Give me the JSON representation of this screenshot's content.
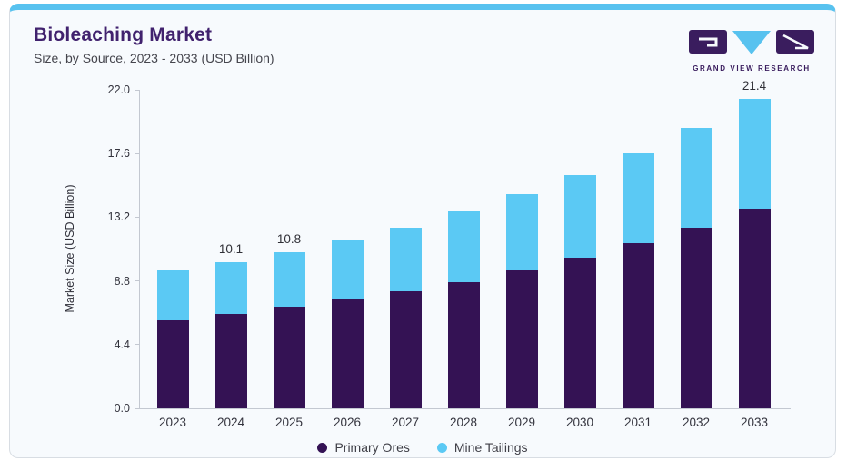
{
  "header": {
    "title": "Bioleaching Market",
    "subtitle": "Size, by Source, 2023 - 2033 (USD Billion)"
  },
  "logo": {
    "caption": "GRAND VIEW RESEARCH",
    "purple": "#3a1d5e",
    "blue": "#58c2ef"
  },
  "colors": {
    "card_background": "#f7fafd",
    "top_border": "#58c2ef",
    "axis_line": "#c3c8d1",
    "primary_ores": "#341254",
    "mine_tailings": "#5bc9f4"
  },
  "chart_data": {
    "type": "bar",
    "stacked": true,
    "title": "Bioleaching Market",
    "subtitle": "Size, by Source, 2023 - 2033 (USD Billion)",
    "xlabel": "",
    "ylabel": "Market Size (USD Billion)",
    "ylim": [
      0,
      22
    ],
    "yticks": [
      0.0,
      4.4,
      8.8,
      13.2,
      17.6,
      22.0
    ],
    "ytick_labels": [
      "0.0",
      "4.4",
      "8.8",
      "13.2",
      "17.6",
      "22.0"
    ],
    "grid": false,
    "legend_position": "bottom",
    "categories": [
      "2023",
      "2024",
      "2025",
      "2026",
      "2027",
      "2028",
      "2029",
      "2030",
      "2031",
      "2032",
      "2033"
    ],
    "series": [
      {
        "name": "Primary Ores",
        "color": "#341254",
        "values": [
          6.1,
          6.5,
          7.0,
          7.5,
          8.1,
          8.7,
          9.5,
          10.4,
          11.4,
          12.5,
          13.8
        ]
      },
      {
        "name": "Mine Tailings",
        "color": "#5bc9f4",
        "values": [
          3.4,
          3.6,
          3.8,
          4.1,
          4.4,
          4.9,
          5.3,
          5.7,
          6.2,
          6.9,
          7.6
        ]
      }
    ],
    "totals": [
      9.5,
      10.1,
      10.8,
      11.6,
      12.5,
      13.6,
      14.8,
      16.1,
      17.6,
      19.4,
      21.4
    ],
    "data_labels": [
      "",
      "10.1",
      "10.8",
      "",
      "",
      "",
      "",
      "",
      "",
      "",
      "21.4"
    ]
  }
}
